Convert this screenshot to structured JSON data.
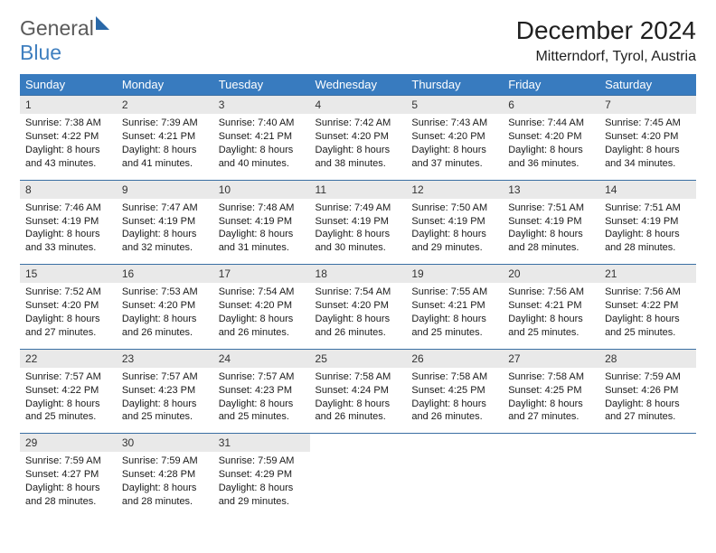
{
  "logo": {
    "general": "General",
    "blue": "Blue"
  },
  "title": "December 2024",
  "location": "Mitterndorf, Tyrol, Austria",
  "colors": {
    "header_bg": "#387bbf",
    "header_text": "#ffffff",
    "daynum_bg": "#e9e9e9",
    "row_divider": "#3a6fa3",
    "body_text": "#1a1a1a",
    "title_text": "#202020",
    "logo_gray": "#5a5a5a",
    "logo_blue": "#3f7fbf",
    "logo_shape": "#2968a8"
  },
  "typography": {
    "title_fontsize": 28,
    "location_fontsize": 16,
    "header_fontsize": 13,
    "cell_fontsize": 11,
    "daynum_fontsize": 12,
    "logo_fontsize": 23
  },
  "weekdays": [
    "Sunday",
    "Monday",
    "Tuesday",
    "Wednesday",
    "Thursday",
    "Friday",
    "Saturday"
  ],
  "weeks": [
    [
      {
        "n": "1",
        "sunrise": "Sunrise: 7:38 AM",
        "sunset": "Sunset: 4:22 PM",
        "day1": "Daylight: 8 hours",
        "day2": "and 43 minutes."
      },
      {
        "n": "2",
        "sunrise": "Sunrise: 7:39 AM",
        "sunset": "Sunset: 4:21 PM",
        "day1": "Daylight: 8 hours",
        "day2": "and 41 minutes."
      },
      {
        "n": "3",
        "sunrise": "Sunrise: 7:40 AM",
        "sunset": "Sunset: 4:21 PM",
        "day1": "Daylight: 8 hours",
        "day2": "and 40 minutes."
      },
      {
        "n": "4",
        "sunrise": "Sunrise: 7:42 AM",
        "sunset": "Sunset: 4:20 PM",
        "day1": "Daylight: 8 hours",
        "day2": "and 38 minutes."
      },
      {
        "n": "5",
        "sunrise": "Sunrise: 7:43 AM",
        "sunset": "Sunset: 4:20 PM",
        "day1": "Daylight: 8 hours",
        "day2": "and 37 minutes."
      },
      {
        "n": "6",
        "sunrise": "Sunrise: 7:44 AM",
        "sunset": "Sunset: 4:20 PM",
        "day1": "Daylight: 8 hours",
        "day2": "and 36 minutes."
      },
      {
        "n": "7",
        "sunrise": "Sunrise: 7:45 AM",
        "sunset": "Sunset: 4:20 PM",
        "day1": "Daylight: 8 hours",
        "day2": "and 34 minutes."
      }
    ],
    [
      {
        "n": "8",
        "sunrise": "Sunrise: 7:46 AM",
        "sunset": "Sunset: 4:19 PM",
        "day1": "Daylight: 8 hours",
        "day2": "and 33 minutes."
      },
      {
        "n": "9",
        "sunrise": "Sunrise: 7:47 AM",
        "sunset": "Sunset: 4:19 PM",
        "day1": "Daylight: 8 hours",
        "day2": "and 32 minutes."
      },
      {
        "n": "10",
        "sunrise": "Sunrise: 7:48 AM",
        "sunset": "Sunset: 4:19 PM",
        "day1": "Daylight: 8 hours",
        "day2": "and 31 minutes."
      },
      {
        "n": "11",
        "sunrise": "Sunrise: 7:49 AM",
        "sunset": "Sunset: 4:19 PM",
        "day1": "Daylight: 8 hours",
        "day2": "and 30 minutes."
      },
      {
        "n": "12",
        "sunrise": "Sunrise: 7:50 AM",
        "sunset": "Sunset: 4:19 PM",
        "day1": "Daylight: 8 hours",
        "day2": "and 29 minutes."
      },
      {
        "n": "13",
        "sunrise": "Sunrise: 7:51 AM",
        "sunset": "Sunset: 4:19 PM",
        "day1": "Daylight: 8 hours",
        "day2": "and 28 minutes."
      },
      {
        "n": "14",
        "sunrise": "Sunrise: 7:51 AM",
        "sunset": "Sunset: 4:19 PM",
        "day1": "Daylight: 8 hours",
        "day2": "and 28 minutes."
      }
    ],
    [
      {
        "n": "15",
        "sunrise": "Sunrise: 7:52 AM",
        "sunset": "Sunset: 4:20 PM",
        "day1": "Daylight: 8 hours",
        "day2": "and 27 minutes."
      },
      {
        "n": "16",
        "sunrise": "Sunrise: 7:53 AM",
        "sunset": "Sunset: 4:20 PM",
        "day1": "Daylight: 8 hours",
        "day2": "and 26 minutes."
      },
      {
        "n": "17",
        "sunrise": "Sunrise: 7:54 AM",
        "sunset": "Sunset: 4:20 PM",
        "day1": "Daylight: 8 hours",
        "day2": "and 26 minutes."
      },
      {
        "n": "18",
        "sunrise": "Sunrise: 7:54 AM",
        "sunset": "Sunset: 4:20 PM",
        "day1": "Daylight: 8 hours",
        "day2": "and 26 minutes."
      },
      {
        "n": "19",
        "sunrise": "Sunrise: 7:55 AM",
        "sunset": "Sunset: 4:21 PM",
        "day1": "Daylight: 8 hours",
        "day2": "and 25 minutes."
      },
      {
        "n": "20",
        "sunrise": "Sunrise: 7:56 AM",
        "sunset": "Sunset: 4:21 PM",
        "day1": "Daylight: 8 hours",
        "day2": "and 25 minutes."
      },
      {
        "n": "21",
        "sunrise": "Sunrise: 7:56 AM",
        "sunset": "Sunset: 4:22 PM",
        "day1": "Daylight: 8 hours",
        "day2": "and 25 minutes."
      }
    ],
    [
      {
        "n": "22",
        "sunrise": "Sunrise: 7:57 AM",
        "sunset": "Sunset: 4:22 PM",
        "day1": "Daylight: 8 hours",
        "day2": "and 25 minutes."
      },
      {
        "n": "23",
        "sunrise": "Sunrise: 7:57 AM",
        "sunset": "Sunset: 4:23 PM",
        "day1": "Daylight: 8 hours",
        "day2": "and 25 minutes."
      },
      {
        "n": "24",
        "sunrise": "Sunrise: 7:57 AM",
        "sunset": "Sunset: 4:23 PM",
        "day1": "Daylight: 8 hours",
        "day2": "and 25 minutes."
      },
      {
        "n": "25",
        "sunrise": "Sunrise: 7:58 AM",
        "sunset": "Sunset: 4:24 PM",
        "day1": "Daylight: 8 hours",
        "day2": "and 26 minutes."
      },
      {
        "n": "26",
        "sunrise": "Sunrise: 7:58 AM",
        "sunset": "Sunset: 4:25 PM",
        "day1": "Daylight: 8 hours",
        "day2": "and 26 minutes."
      },
      {
        "n": "27",
        "sunrise": "Sunrise: 7:58 AM",
        "sunset": "Sunset: 4:25 PM",
        "day1": "Daylight: 8 hours",
        "day2": "and 27 minutes."
      },
      {
        "n": "28",
        "sunrise": "Sunrise: 7:59 AM",
        "sunset": "Sunset: 4:26 PM",
        "day1": "Daylight: 8 hours",
        "day2": "and 27 minutes."
      }
    ],
    [
      {
        "n": "29",
        "sunrise": "Sunrise: 7:59 AM",
        "sunset": "Sunset: 4:27 PM",
        "day1": "Daylight: 8 hours",
        "day2": "and 28 minutes."
      },
      {
        "n": "30",
        "sunrise": "Sunrise: 7:59 AM",
        "sunset": "Sunset: 4:28 PM",
        "day1": "Daylight: 8 hours",
        "day2": "and 28 minutes."
      },
      {
        "n": "31",
        "sunrise": "Sunrise: 7:59 AM",
        "sunset": "Sunset: 4:29 PM",
        "day1": "Daylight: 8 hours",
        "day2": "and 29 minutes."
      },
      null,
      null,
      null,
      null
    ]
  ]
}
